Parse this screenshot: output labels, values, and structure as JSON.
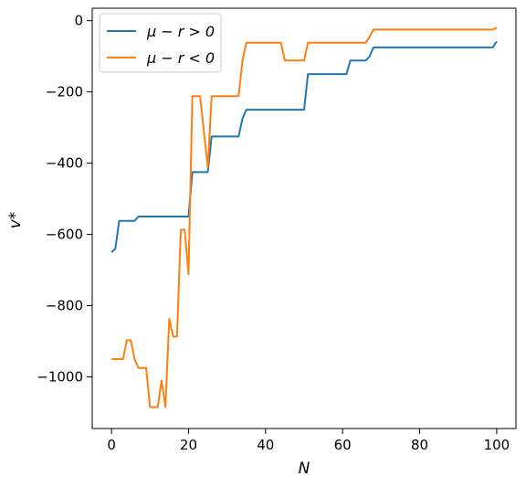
{
  "chart_data": {
    "type": "line",
    "xlabel": "N",
    "ylabel": "v*",
    "xlim": [
      -5,
      105
    ],
    "ylim": [
      -1145,
      35
    ],
    "xticks": [
      0,
      20,
      40,
      60,
      80,
      100
    ],
    "yticks": [
      0,
      -200,
      -400,
      -600,
      -800,
      -1000
    ],
    "xtick_labels": [
      "0",
      "20",
      "40",
      "60",
      "80",
      "100"
    ],
    "ytick_labels": [
      "0",
      "−200",
      "−400",
      "−600",
      "−800",
      "−1000"
    ],
    "grid": false,
    "legend_position": "top-left",
    "series": [
      {
        "name": "μ − r > 0",
        "color": "#1f77b4",
        "points": [
          [
            0,
            -650
          ],
          [
            1,
            -640
          ],
          [
            2,
            -562
          ],
          [
            3,
            -562
          ],
          [
            4,
            -562
          ],
          [
            5,
            -562
          ],
          [
            6,
            -562
          ],
          [
            7,
            -550
          ],
          [
            8,
            -550
          ],
          [
            9,
            -550
          ],
          [
            10,
            -550
          ],
          [
            11,
            -550
          ],
          [
            12,
            -550
          ],
          [
            13,
            -550
          ],
          [
            14,
            -550
          ],
          [
            15,
            -550
          ],
          [
            16,
            -550
          ],
          [
            17,
            -550
          ],
          [
            18,
            -550
          ],
          [
            19,
            -550
          ],
          [
            20,
            -550
          ],
          [
            21,
            -425
          ],
          [
            22,
            -425
          ],
          [
            23,
            -425
          ],
          [
            24,
            -425
          ],
          [
            25,
            -425
          ],
          [
            26,
            -325
          ],
          [
            27,
            -325
          ],
          [
            28,
            -325
          ],
          [
            29,
            -325
          ],
          [
            30,
            -325
          ],
          [
            31,
            -325
          ],
          [
            32,
            -325
          ],
          [
            33,
            -325
          ],
          [
            34,
            -275
          ],
          [
            35,
            -250
          ],
          [
            36,
            -250
          ],
          [
            40,
            -250
          ],
          [
            45,
            -250
          ],
          [
            50,
            -250
          ],
          [
            51,
            -150
          ],
          [
            52,
            -150
          ],
          [
            55,
            -150
          ],
          [
            60,
            -150
          ],
          [
            61,
            -150
          ],
          [
            62,
            -112
          ],
          [
            63,
            -112
          ],
          [
            64,
            -112
          ],
          [
            65,
            -112
          ],
          [
            66,
            -112
          ],
          [
            67,
            -100
          ],
          [
            68,
            -75
          ],
          [
            70,
            -75
          ],
          [
            80,
            -75
          ],
          [
            90,
            -75
          ],
          [
            99,
            -75
          ],
          [
            100,
            -58
          ]
        ]
      },
      {
        "name": "μ − r < 0",
        "color": "#ff7f0e",
        "points": [
          [
            0,
            -950
          ],
          [
            1,
            -950
          ],
          [
            2,
            -950
          ],
          [
            3,
            -950
          ],
          [
            4,
            -897
          ],
          [
            5,
            -897
          ],
          [
            6,
            -950
          ],
          [
            7,
            -975
          ],
          [
            8,
            -975
          ],
          [
            9,
            -975
          ],
          [
            10,
            -1085
          ],
          [
            11,
            -1085
          ],
          [
            12,
            -1085
          ],
          [
            13,
            -1010
          ],
          [
            14,
            -1085
          ],
          [
            15,
            -837
          ],
          [
            16,
            -887
          ],
          [
            17,
            -887
          ],
          [
            18,
            -587
          ],
          [
            19,
            -587
          ],
          [
            20,
            -712
          ],
          [
            21,
            -212
          ],
          [
            22,
            -212
          ],
          [
            23,
            -212
          ],
          [
            24,
            -312
          ],
          [
            25,
            -412
          ],
          [
            26,
            -212
          ],
          [
            27,
            -212
          ],
          [
            28,
            -212
          ],
          [
            30,
            -212
          ],
          [
            32,
            -212
          ],
          [
            33,
            -212
          ],
          [
            34,
            -112
          ],
          [
            35,
            -62
          ],
          [
            36,
            -62
          ],
          [
            40,
            -62
          ],
          [
            44,
            -62
          ],
          [
            45,
            -112
          ],
          [
            46,
            -112
          ],
          [
            50,
            -112
          ],
          [
            51,
            -62
          ],
          [
            52,
            -62
          ],
          [
            55,
            -62
          ],
          [
            60,
            -62
          ],
          [
            65,
            -62
          ],
          [
            66,
            -62
          ],
          [
            67,
            -45
          ],
          [
            68,
            -25
          ],
          [
            70,
            -25
          ],
          [
            80,
            -25
          ],
          [
            90,
            -25
          ],
          [
            99,
            -25
          ],
          [
            100,
            -20
          ]
        ]
      }
    ]
  }
}
